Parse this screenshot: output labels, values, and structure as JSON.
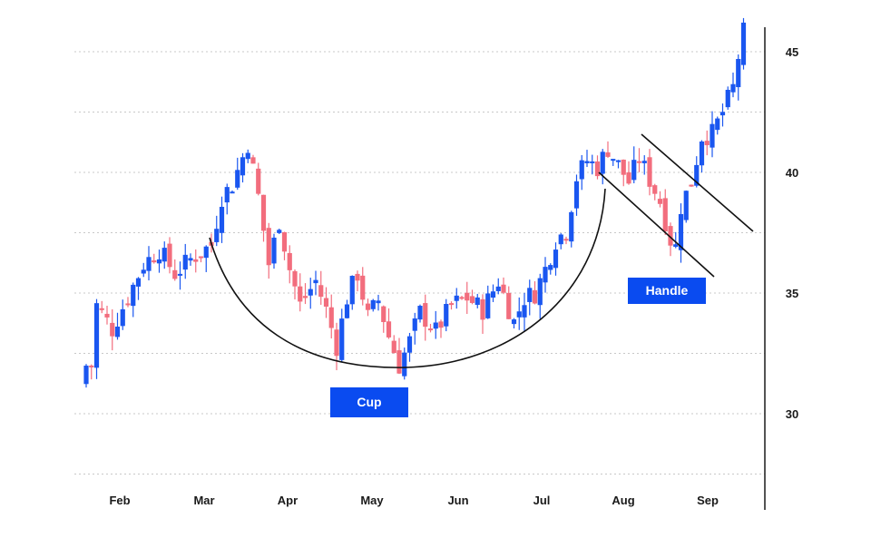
{
  "colors": {
    "up": "#1a56f0",
    "down": "#f26d7d",
    "annotation_bg": "#0a4bf0"
  },
  "chart_data": {
    "type": "candlestick",
    "pattern": "cup and handle",
    "x_tick_labels": [
      "Feb",
      "Mar",
      "Apr",
      "May",
      "Jun",
      "Jul",
      "Aug",
      "Sep"
    ],
    "y_ticks": [
      30,
      35,
      40,
      45
    ],
    "ylim": [
      27.5,
      47.5
    ],
    "y_axis_side": "right",
    "grid": "horizontal dotted",
    "annotations": [
      "Cup",
      "Handle"
    ],
    "price_points": [
      {
        "x": 1,
        "y": 32.0
      },
      {
        "x": 2,
        "y": 34.5
      },
      {
        "x": 5,
        "y": 33.5
      },
      {
        "x": 9,
        "y": 35.3
      },
      {
        "x": 11,
        "y": 36.2
      },
      {
        "x": 14,
        "y": 36.8
      },
      {
        "x": 17,
        "y": 35.8
      },
      {
        "x": 20,
        "y": 36.4
      },
      {
        "x": 24,
        "y": 37.0
      },
      {
        "x": 26,
        "y": 39.0
      },
      {
        "x": 28,
        "y": 39.5
      },
      {
        "x": 31,
        "y": 41.2
      },
      {
        "x": 33,
        "y": 39.0
      },
      {
        "x": 35,
        "y": 36.2
      },
      {
        "x": 37,
        "y": 38.0
      },
      {
        "x": 39,
        "y": 36.0
      },
      {
        "x": 41,
        "y": 34.5
      },
      {
        "x": 44,
        "y": 35.5
      },
      {
        "x": 46,
        "y": 34.3
      },
      {
        "x": 48,
        "y": 32.8
      },
      {
        "x": 50,
        "y": 34.8
      },
      {
        "x": 52,
        "y": 35.8
      },
      {
        "x": 54,
        "y": 34.0
      },
      {
        "x": 56,
        "y": 34.7
      },
      {
        "x": 58,
        "y": 33.2
      },
      {
        "x": 60,
        "y": 32.0
      },
      {
        "x": 62,
        "y": 33.0
      },
      {
        "x": 64,
        "y": 34.2
      },
      {
        "x": 67,
        "y": 33.4
      },
      {
        "x": 70,
        "y": 34.5
      },
      {
        "x": 73,
        "y": 34.8
      },
      {
        "x": 76,
        "y": 34.3
      },
      {
        "x": 79,
        "y": 35.5
      },
      {
        "x": 82,
        "y": 33.8
      },
      {
        "x": 84,
        "y": 34.8
      },
      {
        "x": 86,
        "y": 35.0
      },
      {
        "x": 88,
        "y": 36.0
      },
      {
        "x": 90,
        "y": 37.2
      },
      {
        "x": 92,
        "y": 37.6
      },
      {
        "x": 94,
        "y": 39.8
      },
      {
        "x": 96,
        "y": 40.5
      },
      {
        "x": 98,
        "y": 40.2
      },
      {
        "x": 100,
        "y": 41.0
      },
      {
        "x": 102,
        "y": 40.3
      },
      {
        "x": 104,
        "y": 39.6
      },
      {
        "x": 106,
        "y": 40.6
      },
      {
        "x": 108,
        "y": 39.7
      },
      {
        "x": 110,
        "y": 38.8
      },
      {
        "x": 112,
        "y": 37.2
      },
      {
        "x": 113,
        "y": 36.9
      },
      {
        "x": 114,
        "y": 38.6
      },
      {
        "x": 116,
        "y": 39.6
      },
      {
        "x": 118,
        "y": 41.5
      },
      {
        "x": 120,
        "y": 41.6
      },
      {
        "x": 122,
        "y": 42.5
      },
      {
        "x": 124,
        "y": 43.5
      },
      {
        "x": 125,
        "y": 44.8
      },
      {
        "x": 126,
        "y": 45.8
      }
    ]
  }
}
